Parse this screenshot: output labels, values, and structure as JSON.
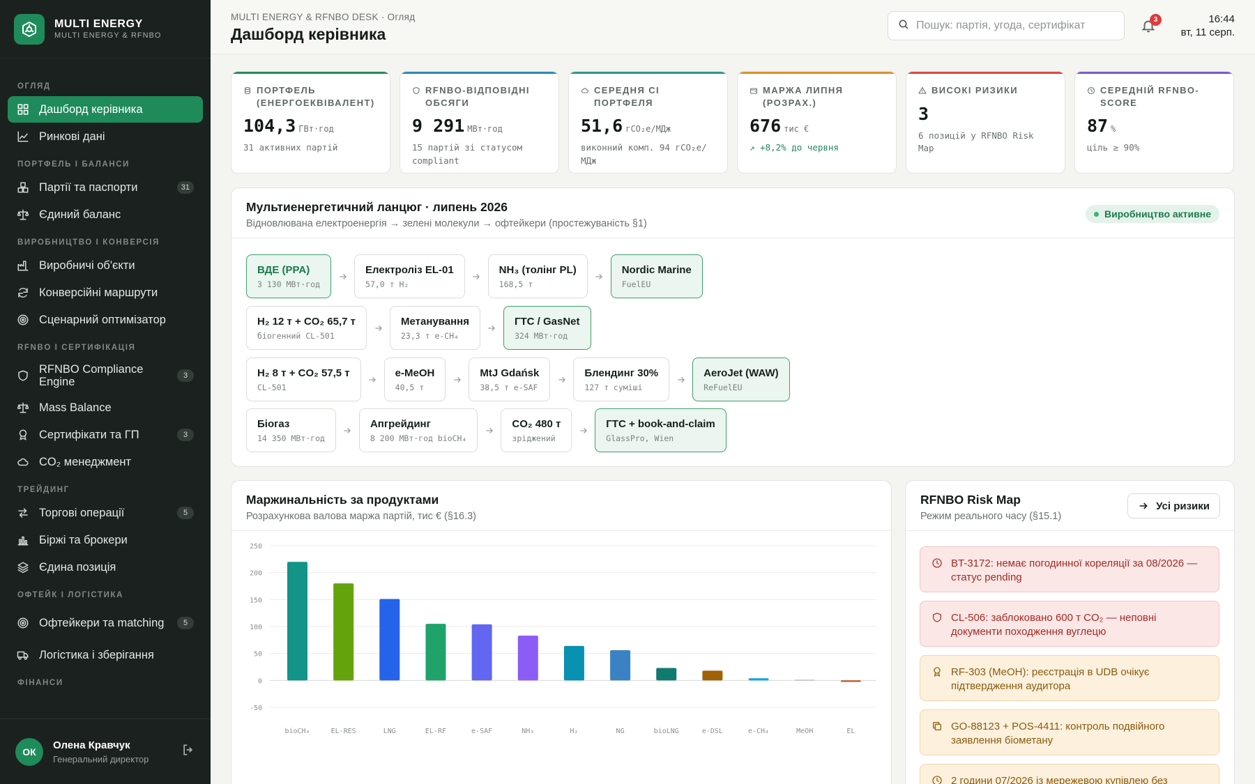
{
  "brand": {
    "name": "MULTI ENERGY",
    "sub": "MULTI ENERGY & RFNBO"
  },
  "nav": {
    "sections": [
      {
        "title": "ОГЛЯД",
        "items": [
          {
            "label": "Дашборд керівника",
            "icon": "grid-icon",
            "active": true
          },
          {
            "label": "Ринкові дані",
            "icon": "line-chart-icon"
          }
        ]
      },
      {
        "title": "ПОРТФЕЛЬ І БАЛАНСИ",
        "items": [
          {
            "label": "Партії та паспорти",
            "icon": "boxes-icon",
            "badge": "31"
          },
          {
            "label": "Єдиний баланс",
            "icon": "scale-icon"
          }
        ]
      },
      {
        "title": "ВИРОБНИЦТВО І КОНВЕРСІЯ",
        "items": [
          {
            "label": "Виробничі об'єкти",
            "icon": "factory-icon"
          },
          {
            "label": "Конверсійні маршрути",
            "icon": "refresh-icon"
          },
          {
            "label": "Сценарний оптимізатор",
            "icon": "target-icon"
          }
        ]
      },
      {
        "title": "RFNBO І СЕРТИФІКАЦІЯ",
        "items": [
          {
            "label": "RFNBO Compliance Engine",
            "icon": "shield-icon",
            "badge": "3",
            "tall": true
          },
          {
            "label": "Mass Balance",
            "icon": "scale-icon"
          },
          {
            "label": "Сертифікати та ГП",
            "icon": "award-icon",
            "badge": "3"
          },
          {
            "label": "CO₂ менеджмент",
            "icon": "cloud-icon"
          }
        ]
      },
      {
        "title": "ТРЕЙДИНГ",
        "items": [
          {
            "label": "Торгові операції",
            "icon": "swap-icon",
            "badge": "5"
          },
          {
            "label": "Біржі та брокери",
            "icon": "bar-chart-icon"
          },
          {
            "label": "Єдина позиція",
            "icon": "layers-icon"
          }
        ]
      },
      {
        "title": "ОФТЕЙК І ЛОГІСТИКА",
        "items": [
          {
            "label": "Офтейкери та matching",
            "icon": "target-icon",
            "badge": "5",
            "tall": true
          },
          {
            "label": "Логістика і зберігання",
            "icon": "truck-icon"
          }
        ]
      },
      {
        "title": "ФІНАНСИ",
        "items": []
      }
    ]
  },
  "user": {
    "initials": "ОК",
    "name": "Олена Кравчук",
    "role": "Генеральний директор"
  },
  "header": {
    "breadcrumb": "MULTI ENERGY & RFNBO DESK · Огляд",
    "title": "Дашборд керівника",
    "search_placeholder": "Пошук: партія, угода, сертифікат",
    "notifications": "3",
    "time": "16:44",
    "date": "вт, 11 серп."
  },
  "kpis": [
    {
      "label": "ПОРТФЕЛЬ (ЕНЕРГОЕКВІВАЛЕНТ)",
      "value": "104,3",
      "unit": "ГВт·год",
      "sub": "31 активних партій",
      "color": "#2a8a5c",
      "icon": "coins-icon"
    },
    {
      "label": "RFNBO-ВІДПОВІДНІ ОБСЯГИ",
      "value": "9 291",
      "unit": "МВт·год",
      "sub": "15 партій зі статусом compliant",
      "color": "#2b8ab8",
      "icon": "shield-icon"
    },
    {
      "label": "СЕРЕДНЯ СІ ПОРТФЕЛЯ",
      "value": "51,6",
      "unit": "гCO₂е/МДж",
      "sub": "виконний комп. 94 гCO₂е/МДж",
      "color": "#2a9a8a",
      "icon": "cloud-icon"
    },
    {
      "label": "МАРЖА ЛИПНЯ (РОЗРАХ.)",
      "value": "676",
      "unit": "тис €",
      "sub": "+8,2% до червня",
      "color": "#d9932a",
      "icon": "wallet-icon",
      "sub_green": true
    },
    {
      "label": "ВИСОКІ РИЗИКИ",
      "value": "3",
      "unit": "",
      "sub": "6 позицій у RFNBO Risk Map",
      "color": "#d94a3f",
      "icon": "alert-icon"
    },
    {
      "label": "СЕРЕДНІЙ RFNBO-SCORE",
      "value": "87",
      "unit": "%",
      "sub": "ціль ≥ 90%",
      "color": "#7a5ad0",
      "icon": "clock-icon"
    }
  ],
  "chain": {
    "title": "Мультиенергетичний ланцюг · липень 2026",
    "subtitle": "Відновлювана електроенергія → зелені молекули → офтейкери (простежуваність §1)",
    "status": "Виробництво активне",
    "rows": [
      [
        {
          "title": "ВДЕ (PPA)",
          "sub": "3 130 МВт·год",
          "kind": "src"
        },
        {
          "title": "Електроліз EL-01",
          "sub": "57,0 т H₂"
        },
        {
          "title": "NH₃ (толінг PL)",
          "sub": "168,5 т"
        },
        {
          "title": "Nordic Marine",
          "sub": "FuelEU",
          "kind": "final"
        }
      ],
      [
        {
          "title": "H₂ 12 т + CO₂ 65,7 т",
          "sub": "біогенний CL-501"
        },
        {
          "title": "Метанування",
          "sub": "23,3 т e-CH₄"
        },
        {
          "title": "ГТС / GasNet",
          "sub": "324 МВт·год",
          "kind": "final"
        }
      ],
      [
        {
          "title": "H₂ 8 т + CO₂ 57,5 т",
          "sub": "CL-501"
        },
        {
          "title": "e-MeOH",
          "sub": "40,5 т"
        },
        {
          "title": "MtJ Gdańsk",
          "sub": "38,5 т e-SAF"
        },
        {
          "title": "Блендинг 30%",
          "sub": "127 т суміші"
        },
        {
          "title": "AeroJet (WAW)",
          "sub": "ReFuelEU",
          "kind": "final"
        }
      ],
      [
        {
          "title": "Біогаз",
          "sub": "14 350 МВт·год"
        },
        {
          "title": "Апгрейдинг",
          "sub": "8 200 МВт·год bioCH₄"
        },
        {
          "title": "CO₂ 480 т",
          "sub": "зріджений"
        },
        {
          "title": "ГТС + book-and-claim",
          "sub": "GlassPro, Wien",
          "kind": "final"
        }
      ]
    ]
  },
  "margin_panel": {
    "title": "Маржинальність за продуктами",
    "subtitle": "Розрахункова валова маржа партій, тис € (§16.3)"
  },
  "chart_data": {
    "type": "bar",
    "categories": [
      "bioCH₄",
      "EL-RES",
      "LNG",
      "EL-RF",
      "e-SAF",
      "NH₃",
      "H₂",
      "NG",
      "bioLNG",
      "e-DSL",
      "e-CH₄",
      "MeOH",
      "EL"
    ],
    "values": [
      220,
      180,
      151,
      105,
      104,
      83,
      64,
      56,
      23,
      18,
      4,
      0,
      -2
    ],
    "colors": [
      "#129488",
      "#65a30d",
      "#2563eb",
      "#1fa36b",
      "#6366f1",
      "#8b5cf6",
      "#0891b2",
      "#3b82c4",
      "#117a6f",
      "#a16207",
      "#0ea5e9",
      "#94a3b8",
      "#c2410c"
    ],
    "yticks": [
      250,
      200,
      150,
      100,
      50,
      0,
      -50
    ],
    "ylim": [
      -50,
      250
    ],
    "grid": true
  },
  "risk_panel": {
    "title": "RFNBO Risk Map",
    "subtitle": "Режим реального часу (§15.1)",
    "button": "Усі ризики",
    "items": [
      {
        "text": "BT-3172: немає погодинної кореляції за 08/2026 — статус pending",
        "level": "red",
        "icon": "clock-icon"
      },
      {
        "text": "CL-506: заблоковано 600 т CO₂ — неповні документи походження вуглецю",
        "level": "red",
        "icon": "shield-icon"
      },
      {
        "text": "RF-303 (MeOH): реєстрація в UDB очікує підтвердження аудитора",
        "level": "amber",
        "icon": "award-icon"
      },
      {
        "text": "GO-88123 + POS-4411: контроль подвійного заявлення біометану",
        "level": "amber",
        "icon": "copy-icon"
      },
      {
        "text": "2 години 07/2026 із мережевою купівлею без",
        "level": "amber",
        "icon": "clock-icon"
      }
    ]
  }
}
